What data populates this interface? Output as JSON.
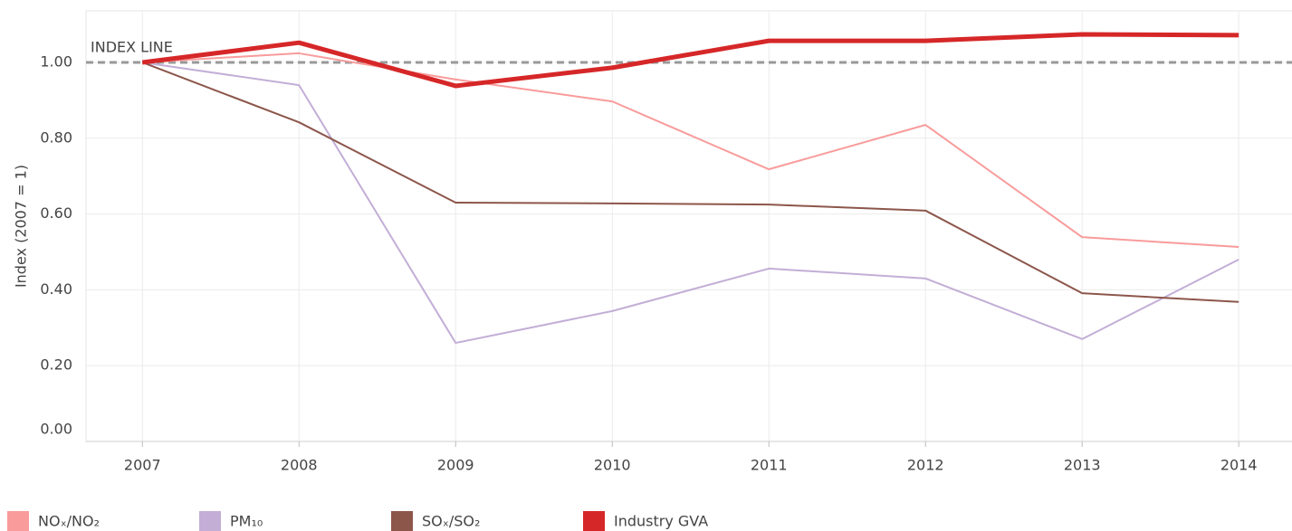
{
  "chart_data": {
    "type": "line",
    "y_label": "Index (2007 = 1)",
    "x": [
      2007,
      2008,
      2009,
      2010,
      2011,
      2012,
      2013,
      2014
    ],
    "xlim": [
      2006.64,
      2014.34
    ],
    "xticks": [
      2007,
      2008,
      2009,
      2010,
      2011,
      2012,
      2013,
      2014
    ],
    "ylim": [
      0,
      1.136
    ],
    "yticks": [
      {
        "value": 0,
        "label": "0.00"
      },
      {
        "value": 0.2,
        "label": "0.20"
      },
      {
        "value": 0.4,
        "label": "0.40"
      },
      {
        "value": 0.6,
        "label": "0.60"
      },
      {
        "value": 0.8,
        "label": "0.80"
      },
      {
        "value": 1,
        "label": "1.00"
      }
    ],
    "grid": true,
    "index_line": {
      "value": 1,
      "label": "INDEX LINE",
      "color": "#999999"
    },
    "series": [
      {
        "name": "NOₓ/NO₂",
        "color": "#f99b9b",
        "width": 2,
        "values": [
          1.0,
          1.024,
          0.955,
          0.897,
          0.718,
          0.835,
          0.539,
          0.513
        ]
      },
      {
        "name": "PM₁₀",
        "color": "#c3aed6",
        "width": 2,
        "values": [
          1.0,
          0.94,
          0.26,
          0.344,
          0.456,
          0.43,
          0.27,
          0.48
        ]
      },
      {
        "name": "SOₓ/SO₂",
        "color": "#8c564b",
        "width": 2,
        "values": [
          1.0,
          0.842,
          0.63,
          0.628,
          0.625,
          0.609,
          0.391,
          0.368
        ]
      },
      {
        "name": "Industry GVA",
        "color": "#d62728",
        "width": 5,
        "values": [
          1.0,
          1.052,
          0.938,
          0.986,
          1.057,
          1.057,
          1.074,
          1.072
        ]
      }
    ]
  }
}
